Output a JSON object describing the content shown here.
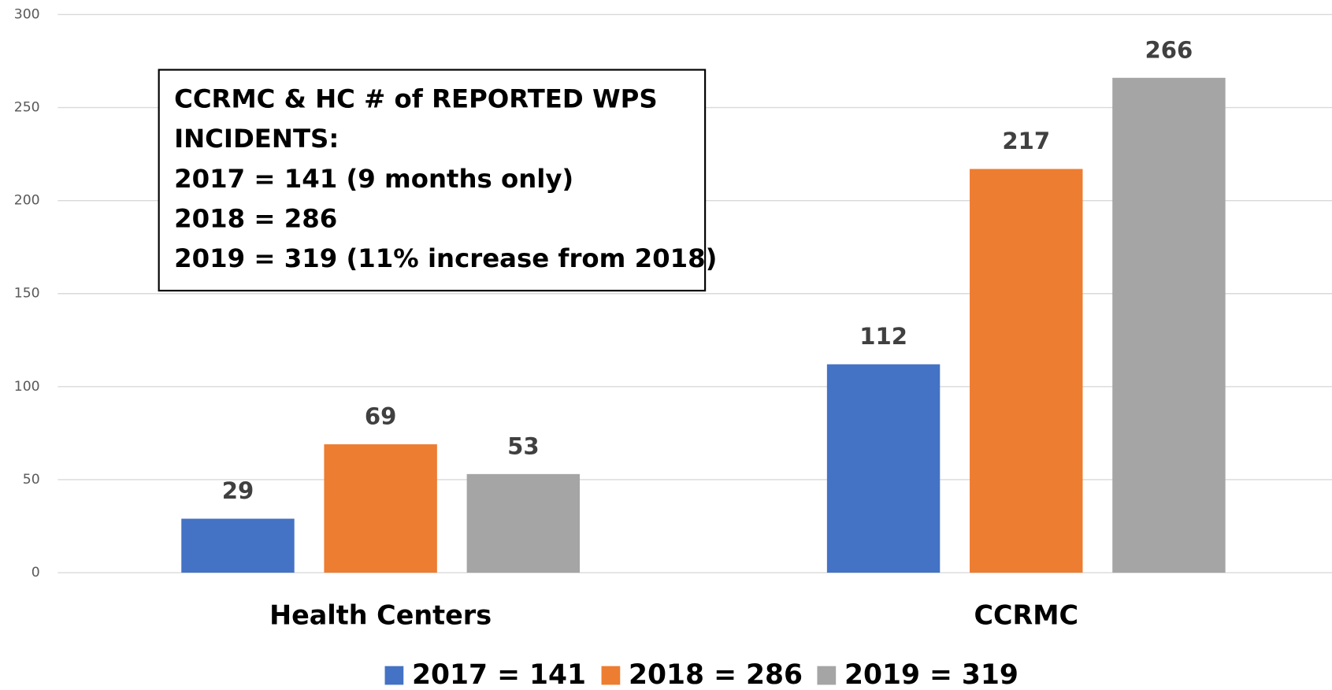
{
  "chart_data": {
    "type": "bar",
    "categories": [
      "Health Centers",
      "CCRMC"
    ],
    "series": [
      {
        "name": "2017 = 141",
        "color": "#4472c4",
        "values": [
          29,
          112
        ]
      },
      {
        "name": "2018 = 286",
        "color": "#ed7d31",
        "values": [
          69,
          217
        ]
      },
      {
        "name": "2019 = 319",
        "color": "#a5a5a5",
        "values": [
          53,
          266
        ]
      }
    ],
    "ylim": [
      0,
      300
    ],
    "yticks": [
      0,
      50,
      100,
      150,
      200,
      250,
      300
    ],
    "grid": true,
    "legend": "bottom",
    "annotation": [
      "CCRMC & HC # of REPORTED WPS",
      "INCIDENTS:",
      "2017 = 141 (9 months only)",
      "2018 = 286",
      "2019 = 319 (11% increase from 2018)"
    ]
  }
}
